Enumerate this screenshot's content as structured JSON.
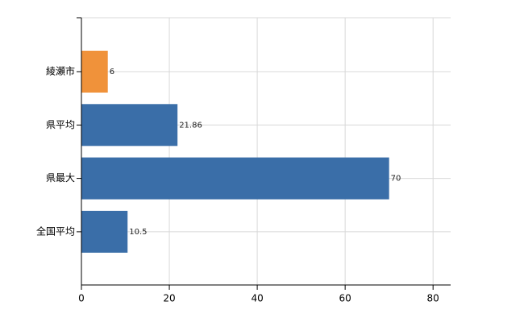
{
  "chart_data": {
    "type": "hbar",
    "categories": [
      "綾瀬市",
      "県平均",
      "県最大",
      "全国平均"
    ],
    "values": [
      6,
      21.86,
      70,
      10.5
    ],
    "colors": [
      "#f0923a",
      "#3a6ea8",
      "#3a6ea8",
      "#3a6ea8"
    ],
    "xlim": [
      0,
      84
    ],
    "xticks": [
      0,
      20,
      40,
      60,
      80
    ],
    "grid": true
  }
}
